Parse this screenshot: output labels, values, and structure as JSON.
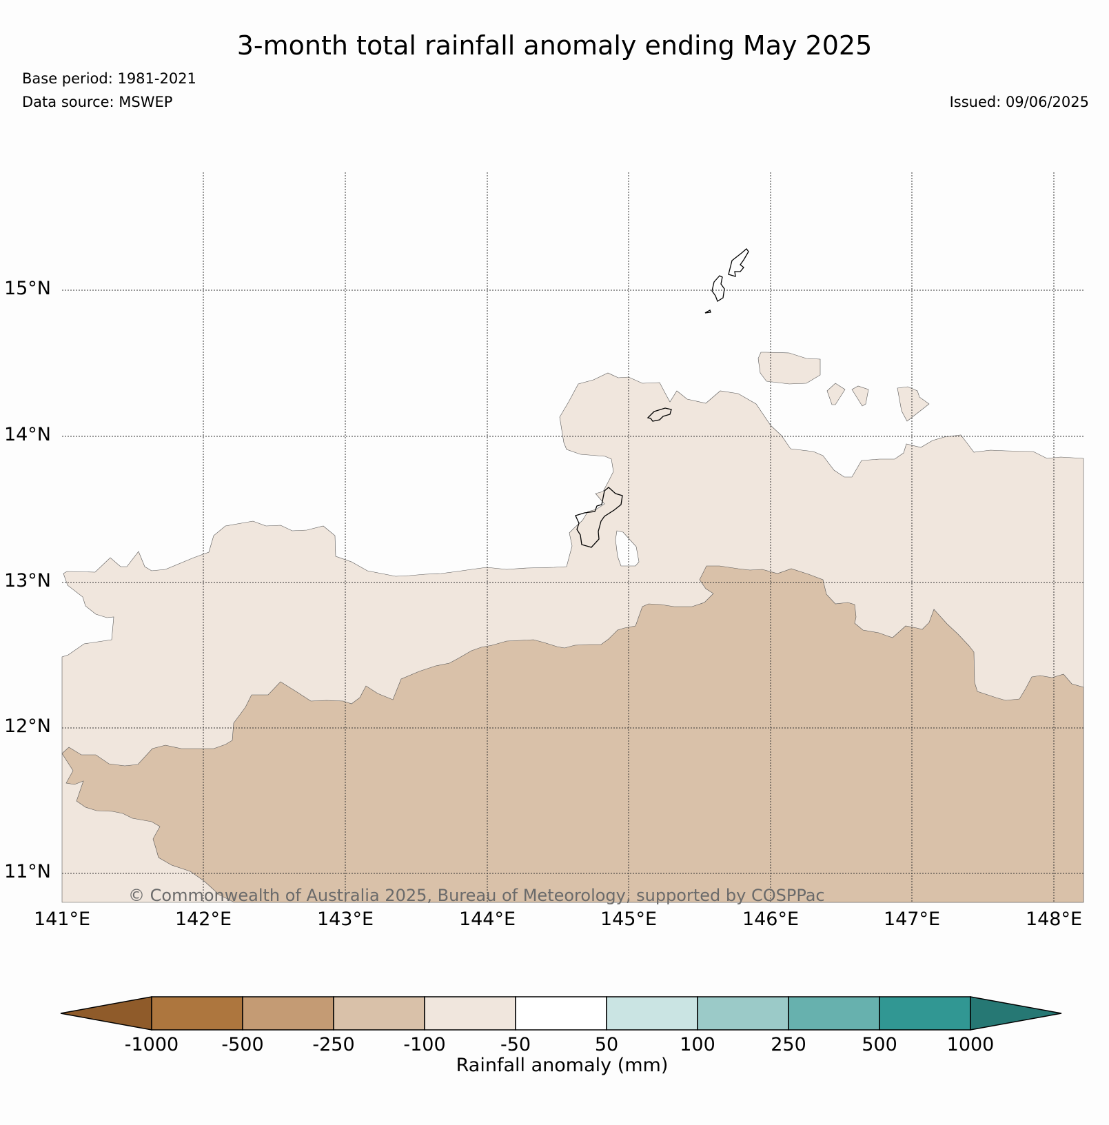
{
  "title": "3-month total rainfall anomaly ending May 2025",
  "base_period": "Base period: 1981-2021",
  "data_source": "Data source: MSWEP",
  "issued": "Issued: 09/06/2025",
  "copyright": "© Commonwealth of Australia 2025, Bureau of Meteorology, supported by COSPPac",
  "map": {
    "lat_labels": [
      "15°N",
      "14°N",
      "13°N",
      "12°N",
      "11°N"
    ],
    "lon_labels": [
      "141°E",
      "142°E",
      "143°E",
      "144°E",
      "145°E",
      "146°E",
      "147°E",
      "148°E"
    ],
    "colors": {
      "anomaly_minus100_to_minus50": "#f0e6dd",
      "anomaly_minus250_to_minus100": "#d9c1a9"
    }
  },
  "colorbar": {
    "title": "Rainfall anomaly (mm)",
    "ticks": [
      "-1000",
      "-500",
      "-250",
      "-100",
      "-50",
      "50",
      "100",
      "250",
      "500",
      "1000"
    ],
    "colors": [
      "#8f5b2a",
      "#ad763e",
      "#c49b74",
      "#d9c1a9",
      "#f0e6dd",
      "#ffffff",
      "#cae4e3",
      "#9bcac8",
      "#67b1ae",
      "#319793",
      "#267874"
    ]
  }
}
